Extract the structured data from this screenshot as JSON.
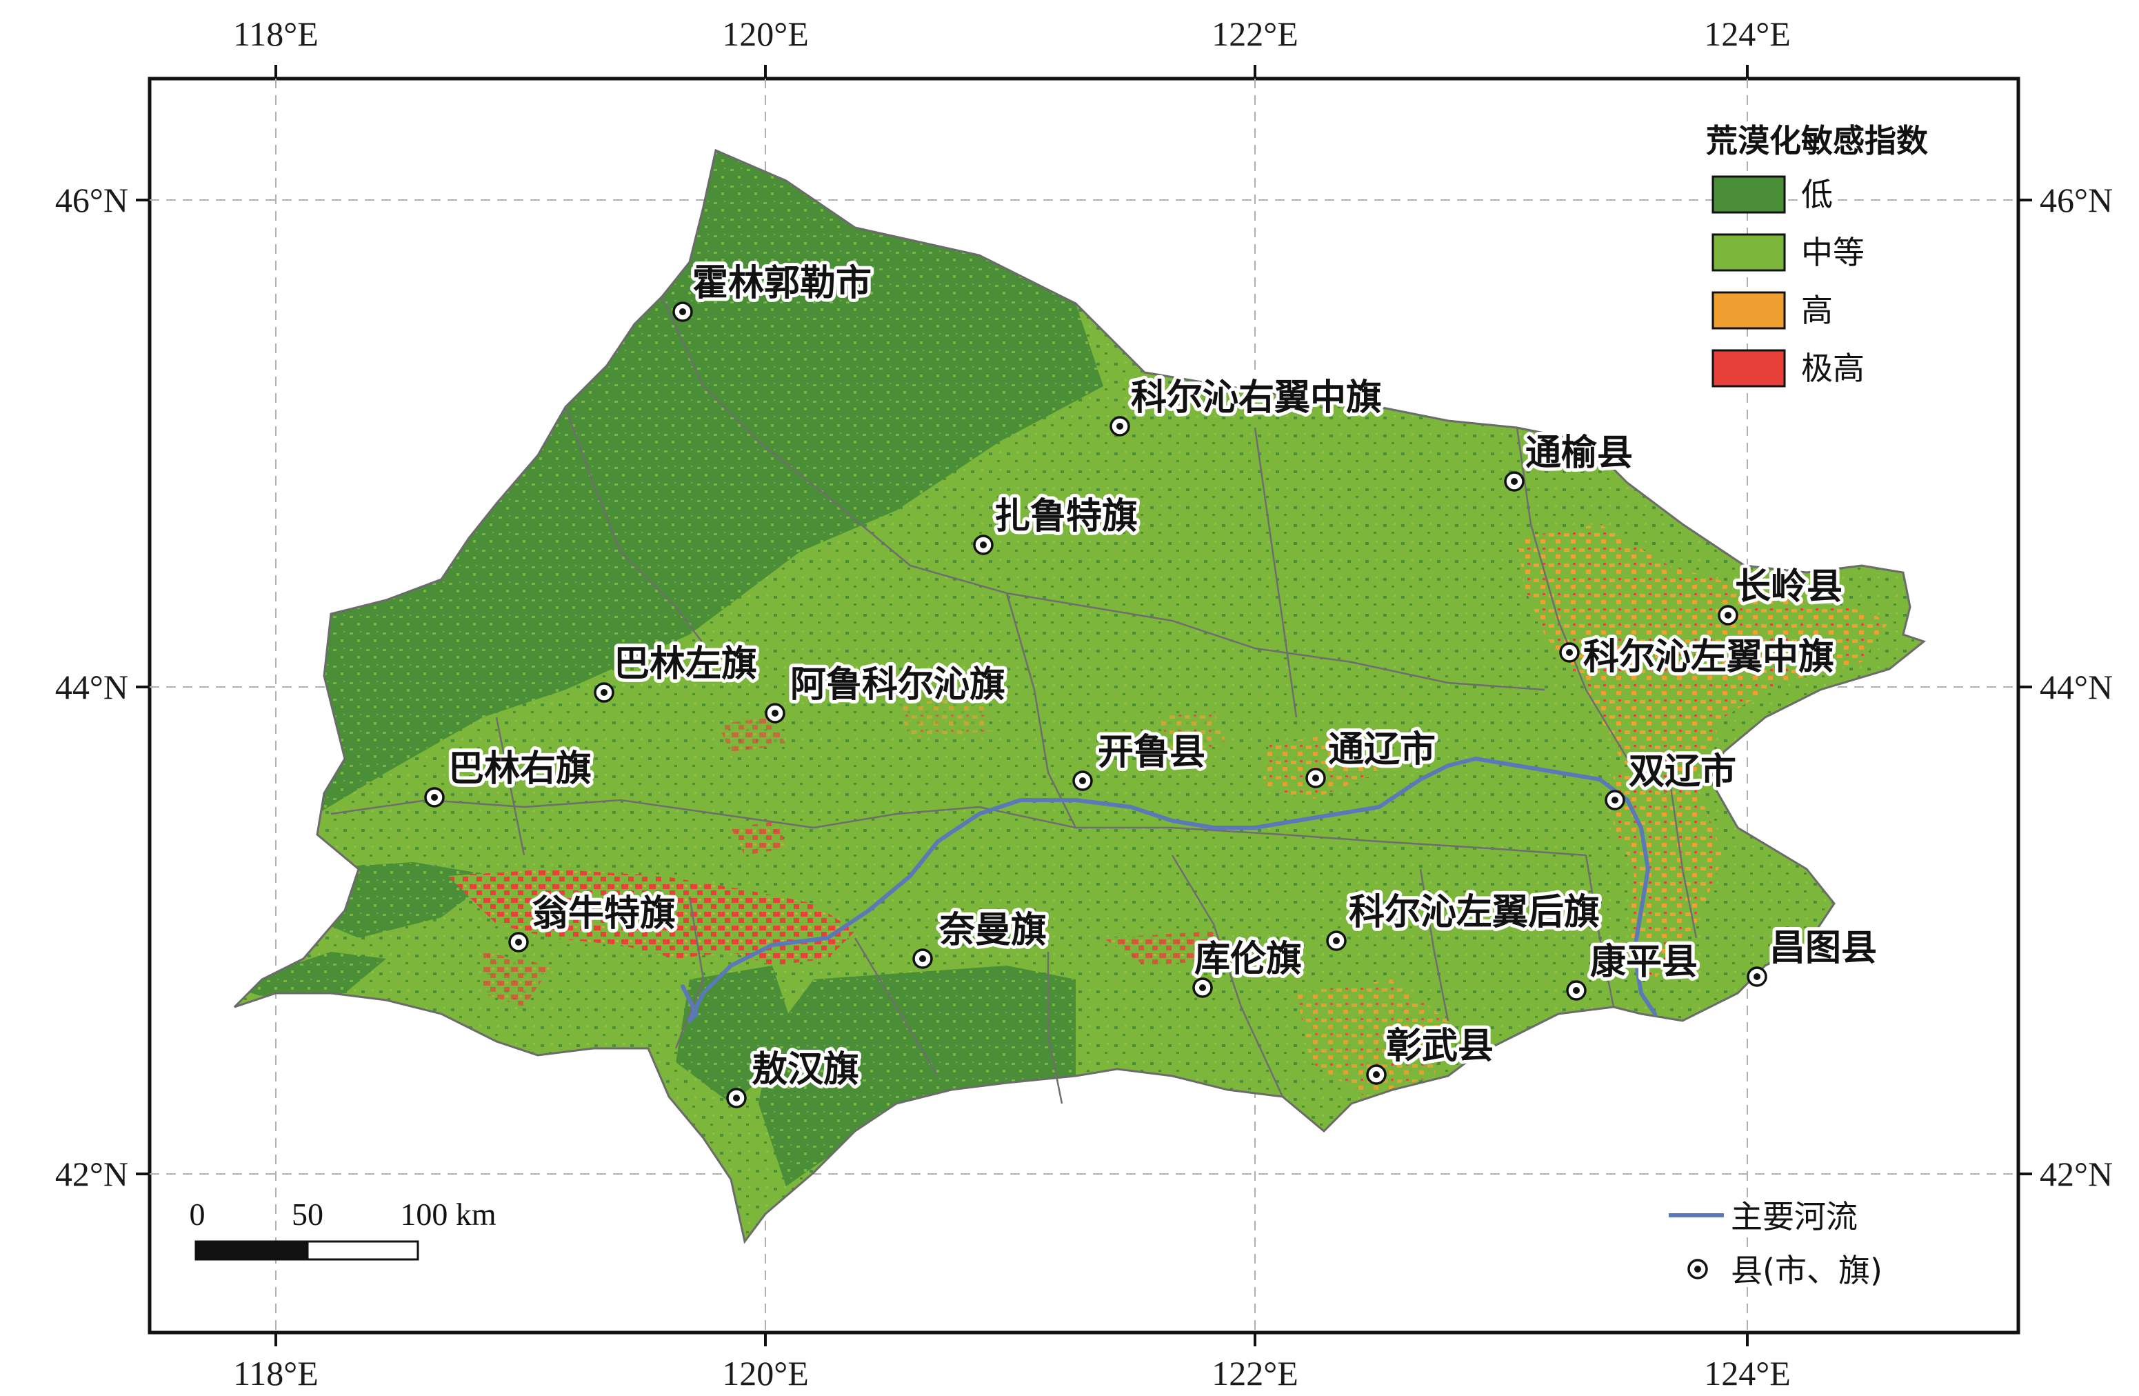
{
  "map": {
    "legend": {
      "title": "荒漠化敏感指数",
      "classes": [
        {
          "label": "低",
          "color": "#4a8f37"
        },
        {
          "label": "中等",
          "color": "#7cb73c"
        },
        {
          "label": "高",
          "color": "#f0a030"
        },
        {
          "label": "极高",
          "color": "#e8413a"
        }
      ]
    },
    "lower_legend": {
      "river_label": "主要河流",
      "river_color": "#5b79b8",
      "county_label": "县(市、旗)"
    },
    "scale_bar": {
      "ticks": [
        "0",
        "50",
        "100 km"
      ]
    },
    "lon_labels": [
      "118°E",
      "120°E",
      "122°E",
      "124°E"
    ],
    "lat_labels": [
      "46°N",
      "44°N",
      "42°N"
    ],
    "cities": [
      {
        "name": "霍林郭勒市"
      },
      {
        "name": "科尔沁右翼中旗"
      },
      {
        "name": "通榆县"
      },
      {
        "name": "扎鲁特旗"
      },
      {
        "name": "长岭县"
      },
      {
        "name": "科尔沁左翼中旗"
      },
      {
        "name": "巴林左旗"
      },
      {
        "name": "阿鲁科尔沁旗"
      },
      {
        "name": "开鲁县"
      },
      {
        "name": "通辽市"
      },
      {
        "name": "双辽市"
      },
      {
        "name": "巴林右旗"
      },
      {
        "name": "翁牛特旗"
      },
      {
        "name": "奈曼旗"
      },
      {
        "name": "科尔沁左翼后旗"
      },
      {
        "name": "库伦旗"
      },
      {
        "name": "康平县"
      },
      {
        "name": "昌图县"
      },
      {
        "name": "彰武县"
      },
      {
        "name": "敖汉旗"
      }
    ]
  }
}
